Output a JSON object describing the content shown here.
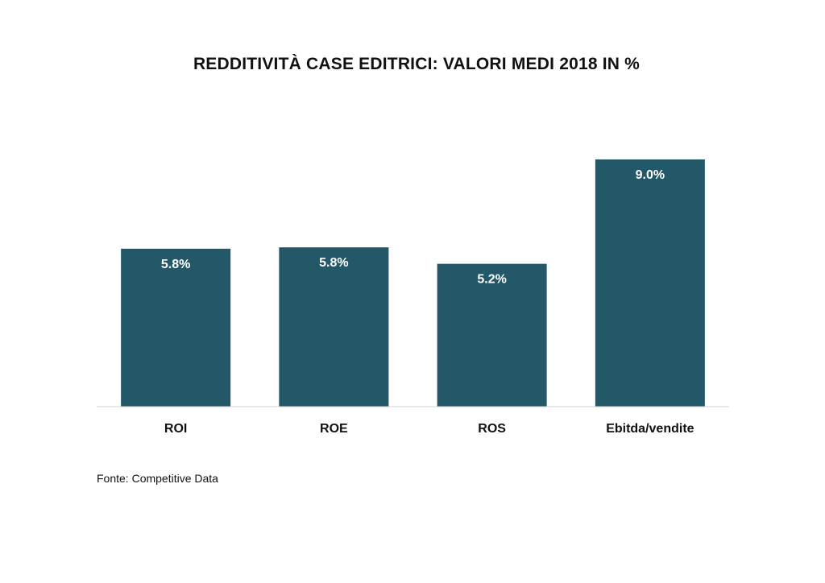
{
  "chart_data": {
    "type": "bar",
    "title": "REDDITIVITÀ CASE EDITRICI: VALORI MEDI 2018 IN %",
    "categories": [
      "ROI",
      "ROE",
      "ROS",
      "Ebitda/vendite"
    ],
    "values": [
      5.75,
      5.8,
      5.2,
      9.0
    ],
    "value_labels": [
      "5.8%",
      "5.8%",
      "5.2%",
      "9.0%"
    ],
    "xlabel": "",
    "ylabel": "",
    "ylim": [
      0,
      9.0
    ],
    "grid": false,
    "legend": "none",
    "bar_color": "#235868"
  },
  "source": "Fonte: Competitive Data"
}
